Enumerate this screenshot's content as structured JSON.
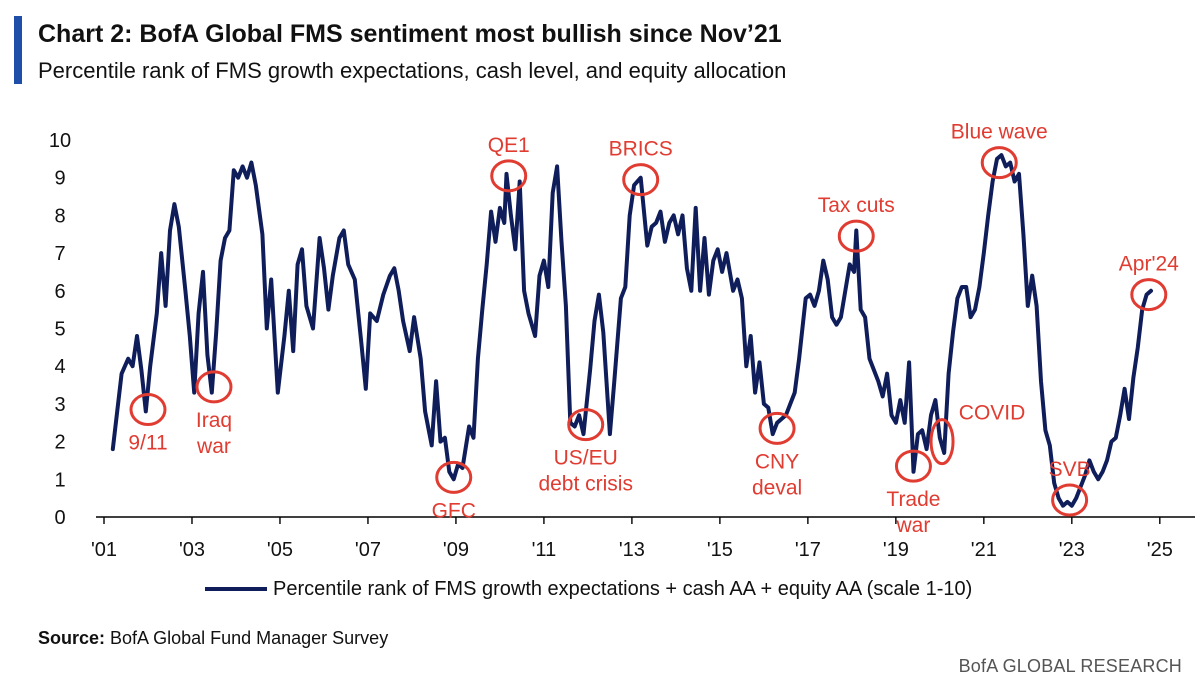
{
  "header": {
    "title": "Chart 2: BofA Global FMS sentiment most bullish since Nov’21",
    "subtitle": "Percentile rank of FMS growth expectations, cash level, and equity allocation"
  },
  "footer": {
    "source_label": "Source:",
    "source_text": " BofA Global Fund Manager Survey",
    "brand": "BofA GLOBAL RESEARCH"
  },
  "colors": {
    "line": "#0f1e5a",
    "annotation": "#e03c31",
    "accent": "#1f4ea8",
    "axis": "#000000"
  },
  "chart_data": {
    "type": "line",
    "title": "Chart 2: BofA Global FMS sentiment most bullish since Nov’21",
    "subtitle": "Percentile rank of FMS growth expectations, cash level, and equity allocation",
    "ylim": [
      0,
      10
    ],
    "xlim": [
      2001,
      2025.8
    ],
    "yticks": [
      0,
      1,
      2,
      3,
      4,
      5,
      6,
      7,
      8,
      9,
      10
    ],
    "xticks": [
      {
        "value": 2001,
        "label": "'01"
      },
      {
        "value": 2003,
        "label": "'03"
      },
      {
        "value": 2005,
        "label": "'05"
      },
      {
        "value": 2007,
        "label": "'07"
      },
      {
        "value": 2009,
        "label": "'09"
      },
      {
        "value": 2011,
        "label": "'11"
      },
      {
        "value": 2013,
        "label": "'13"
      },
      {
        "value": 2015,
        "label": "'15"
      },
      {
        "value": 2017,
        "label": "'17"
      },
      {
        "value": 2019,
        "label": "'19"
      },
      {
        "value": 2021,
        "label": "'21"
      },
      {
        "value": 2023,
        "label": "'23"
      },
      {
        "value": 2025,
        "label": "'25"
      }
    ],
    "legend": "bottom",
    "series": [
      {
        "name": "Percentile rank of FMS growth expectations + cash AA + equity AA (scale 1-10)",
        "points": [
          [
            2001.2,
            1.8
          ],
          [
            2001.4,
            3.8
          ],
          [
            2001.55,
            4.2
          ],
          [
            2001.65,
            4.0
          ],
          [
            2001.75,
            4.8
          ],
          [
            2001.85,
            3.9
          ],
          [
            2001.95,
            2.8
          ],
          [
            2002.05,
            4.0
          ],
          [
            2002.2,
            5.4
          ],
          [
            2002.3,
            7.0
          ],
          [
            2002.4,
            5.6
          ],
          [
            2002.5,
            7.6
          ],
          [
            2002.6,
            8.3
          ],
          [
            2002.7,
            7.7
          ],
          [
            2002.85,
            6.0
          ],
          [
            2002.95,
            4.8
          ],
          [
            2003.05,
            3.3
          ],
          [
            2003.15,
            5.4
          ],
          [
            2003.25,
            6.5
          ],
          [
            2003.35,
            4.3
          ],
          [
            2003.45,
            3.3
          ],
          [
            2003.55,
            4.9
          ],
          [
            2003.65,
            6.8
          ],
          [
            2003.75,
            7.4
          ],
          [
            2003.85,
            7.6
          ],
          [
            2003.95,
            9.2
          ],
          [
            2004.05,
            9.0
          ],
          [
            2004.15,
            9.3
          ],
          [
            2004.25,
            9.0
          ],
          [
            2004.35,
            9.4
          ],
          [
            2004.45,
            8.8
          ],
          [
            2004.6,
            7.5
          ],
          [
            2004.7,
            5.0
          ],
          [
            2004.8,
            6.3
          ],
          [
            2004.95,
            3.3
          ],
          [
            2005.1,
            4.8
          ],
          [
            2005.2,
            6.0
          ],
          [
            2005.3,
            4.4
          ],
          [
            2005.4,
            6.7
          ],
          [
            2005.5,
            7.1
          ],
          [
            2005.6,
            5.6
          ],
          [
            2005.75,
            5.0
          ],
          [
            2005.9,
            7.4
          ],
          [
            2006.0,
            6.6
          ],
          [
            2006.1,
            5.5
          ],
          [
            2006.2,
            6.4
          ],
          [
            2006.35,
            7.4
          ],
          [
            2006.45,
            7.6
          ],
          [
            2006.55,
            6.7
          ],
          [
            2006.7,
            6.3
          ],
          [
            2006.85,
            4.6
          ],
          [
            2006.95,
            3.4
          ],
          [
            2007.05,
            5.4
          ],
          [
            2007.2,
            5.2
          ],
          [
            2007.35,
            5.9
          ],
          [
            2007.5,
            6.4
          ],
          [
            2007.6,
            6.6
          ],
          [
            2007.7,
            6.0
          ],
          [
            2007.8,
            5.2
          ],
          [
            2007.95,
            4.4
          ],
          [
            2008.05,
            5.3
          ],
          [
            2008.2,
            4.2
          ],
          [
            2008.3,
            2.8
          ],
          [
            2008.45,
            1.9
          ],
          [
            2008.55,
            3.6
          ],
          [
            2008.65,
            2.0
          ],
          [
            2008.75,
            2.1
          ],
          [
            2008.85,
            1.2
          ],
          [
            2008.95,
            1.0
          ],
          [
            2009.05,
            1.4
          ],
          [
            2009.15,
            1.3
          ],
          [
            2009.3,
            2.4
          ],
          [
            2009.4,
            2.1
          ],
          [
            2009.5,
            4.2
          ],
          [
            2009.6,
            5.5
          ],
          [
            2009.7,
            6.7
          ],
          [
            2009.8,
            8.1
          ],
          [
            2009.9,
            7.3
          ],
          [
            2010.0,
            8.2
          ],
          [
            2010.1,
            7.8
          ],
          [
            2010.15,
            9.1
          ],
          [
            2010.25,
            8.0
          ],
          [
            2010.35,
            7.1
          ],
          [
            2010.45,
            8.9
          ],
          [
            2010.55,
            6.0
          ],
          [
            2010.65,
            5.4
          ],
          [
            2010.8,
            4.8
          ],
          [
            2010.9,
            6.4
          ],
          [
            2011.0,
            6.8
          ],
          [
            2011.1,
            6.1
          ],
          [
            2011.2,
            8.6
          ],
          [
            2011.3,
            9.3
          ],
          [
            2011.4,
            7.3
          ],
          [
            2011.5,
            5.6
          ],
          [
            2011.6,
            2.5
          ],
          [
            2011.7,
            2.4
          ],
          [
            2011.8,
            2.7
          ],
          [
            2011.9,
            2.2
          ],
          [
            2012.05,
            3.9
          ],
          [
            2012.15,
            5.2
          ],
          [
            2012.25,
            5.9
          ],
          [
            2012.35,
            4.9
          ],
          [
            2012.5,
            2.2
          ],
          [
            2012.6,
            3.6
          ],
          [
            2012.75,
            5.8
          ],
          [
            2012.85,
            6.1
          ],
          [
            2012.95,
            8.0
          ],
          [
            2013.05,
            8.8
          ],
          [
            2013.2,
            9.0
          ],
          [
            2013.35,
            7.2
          ],
          [
            2013.45,
            7.7
          ],
          [
            2013.55,
            7.8
          ],
          [
            2013.65,
            8.1
          ],
          [
            2013.75,
            7.3
          ],
          [
            2013.85,
            7.8
          ],
          [
            2013.95,
            8.0
          ],
          [
            2014.05,
            7.5
          ],
          [
            2014.15,
            8.0
          ],
          [
            2014.25,
            6.6
          ],
          [
            2014.35,
            6.0
          ],
          [
            2014.45,
            8.2
          ],
          [
            2014.55,
            6.0
          ],
          [
            2014.65,
            7.4
          ],
          [
            2014.75,
            5.9
          ],
          [
            2014.85,
            6.8
          ],
          [
            2014.95,
            7.1
          ],
          [
            2015.05,
            6.5
          ],
          [
            2015.15,
            7.0
          ],
          [
            2015.3,
            6.0
          ],
          [
            2015.4,
            6.3
          ],
          [
            2015.5,
            5.8
          ],
          [
            2015.6,
            4.0
          ],
          [
            2015.7,
            4.8
          ],
          [
            2015.8,
            3.3
          ],
          [
            2015.9,
            4.1
          ],
          [
            2016.0,
            3.0
          ],
          [
            2016.1,
            2.9
          ],
          [
            2016.2,
            2.2
          ],
          [
            2016.3,
            2.5
          ],
          [
            2016.4,
            2.6
          ],
          [
            2016.5,
            2.7
          ],
          [
            2016.6,
            3.0
          ],
          [
            2016.7,
            3.3
          ],
          [
            2016.8,
            4.2
          ],
          [
            2016.95,
            5.8
          ],
          [
            2017.05,
            5.9
          ],
          [
            2017.15,
            5.6
          ],
          [
            2017.25,
            6.0
          ],
          [
            2017.35,
            6.8
          ],
          [
            2017.45,
            6.3
          ],
          [
            2017.55,
            5.3
          ],
          [
            2017.65,
            5.1
          ],
          [
            2017.75,
            5.3
          ],
          [
            2017.85,
            6.0
          ],
          [
            2017.95,
            6.7
          ],
          [
            2018.05,
            6.5
          ],
          [
            2018.1,
            7.6
          ],
          [
            2018.2,
            5.5
          ],
          [
            2018.3,
            5.3
          ],
          [
            2018.4,
            4.2
          ],
          [
            2018.5,
            3.9
          ],
          [
            2018.6,
            3.6
          ],
          [
            2018.7,
            3.2
          ],
          [
            2018.8,
            3.8
          ],
          [
            2018.9,
            2.7
          ],
          [
            2019.0,
            2.5
          ],
          [
            2019.1,
            3.1
          ],
          [
            2019.2,
            2.5
          ],
          [
            2019.3,
            4.1
          ],
          [
            2019.4,
            1.2
          ],
          [
            2019.5,
            2.2
          ],
          [
            2019.6,
            2.3
          ],
          [
            2019.7,
            1.8
          ],
          [
            2019.8,
            2.7
          ],
          [
            2019.9,
            3.1
          ],
          [
            2020.0,
            2.1
          ],
          [
            2020.1,
            1.7
          ],
          [
            2020.2,
            3.8
          ],
          [
            2020.3,
            4.9
          ],
          [
            2020.4,
            5.8
          ],
          [
            2020.5,
            6.1
          ],
          [
            2020.6,
            6.1
          ],
          [
            2020.7,
            5.3
          ],
          [
            2020.8,
            5.5
          ],
          [
            2020.9,
            6.1
          ],
          [
            2021.0,
            7.0
          ],
          [
            2021.1,
            8.0
          ],
          [
            2021.2,
            8.9
          ],
          [
            2021.3,
            9.5
          ],
          [
            2021.4,
            9.6
          ],
          [
            2021.5,
            9.3
          ],
          [
            2021.6,
            9.4
          ],
          [
            2021.7,
            8.9
          ],
          [
            2021.8,
            9.1
          ],
          [
            2021.9,
            7.5
          ],
          [
            2022.0,
            5.6
          ],
          [
            2022.1,
            6.4
          ],
          [
            2022.2,
            5.6
          ],
          [
            2022.3,
            3.6
          ],
          [
            2022.4,
            2.3
          ],
          [
            2022.5,
            1.9
          ],
          [
            2022.6,
            0.9
          ],
          [
            2022.7,
            0.5
          ],
          [
            2022.8,
            0.3
          ],
          [
            2022.9,
            0.4
          ],
          [
            2023.0,
            0.3
          ],
          [
            2023.1,
            0.5
          ],
          [
            2023.2,
            0.8
          ],
          [
            2023.3,
            1.1
          ],
          [
            2023.4,
            1.5
          ],
          [
            2023.5,
            1.2
          ],
          [
            2023.6,
            1.0
          ],
          [
            2023.7,
            1.2
          ],
          [
            2023.8,
            1.5
          ],
          [
            2023.9,
            2.0
          ],
          [
            2024.0,
            2.1
          ],
          [
            2024.1,
            2.7
          ],
          [
            2024.2,
            3.4
          ],
          [
            2024.3,
            2.6
          ],
          [
            2024.4,
            3.7
          ],
          [
            2024.5,
            4.5
          ],
          [
            2024.6,
            5.5
          ],
          [
            2024.7,
            5.9
          ],
          [
            2024.8,
            6.0
          ]
        ]
      }
    ],
    "annotations": [
      {
        "text": "9/11",
        "x": 2002.0,
        "y": 2.85,
        "label_side": "below"
      },
      {
        "text": "Iraq\nwar",
        "x": 2003.5,
        "y": 3.45,
        "label_side": "below"
      },
      {
        "text": "GFC",
        "x": 2008.95,
        "y": 1.05,
        "label_side": "below"
      },
      {
        "text": "QE1",
        "x": 2010.2,
        "y": 9.05,
        "label_side": "above"
      },
      {
        "text": "US/EU\ndebt crisis",
        "x": 2011.95,
        "y": 2.45,
        "label_side": "below"
      },
      {
        "text": "BRICS",
        "x": 2013.2,
        "y": 8.95,
        "label_side": "above"
      },
      {
        "text": "CNY\ndeval",
        "x": 2016.3,
        "y": 2.35,
        "label_side": "below"
      },
      {
        "text": "Tax cuts",
        "x": 2018.1,
        "y": 7.45,
        "label_side": "above"
      },
      {
        "text": "Trade\nwar",
        "x": 2019.4,
        "y": 1.35,
        "label_side": "below"
      },
      {
        "text": "COVID",
        "x": 2020.05,
        "y": 2.0,
        "label_side": "above"
      },
      {
        "text": "Blue wave",
        "x": 2021.35,
        "y": 9.4,
        "label_side": "above"
      },
      {
        "text": "SVB",
        "x": 2022.95,
        "y": 0.45,
        "label_side": "above"
      },
      {
        "text": "Apr'24",
        "x": 2024.75,
        "y": 5.9,
        "label_side": "above"
      }
    ]
  }
}
